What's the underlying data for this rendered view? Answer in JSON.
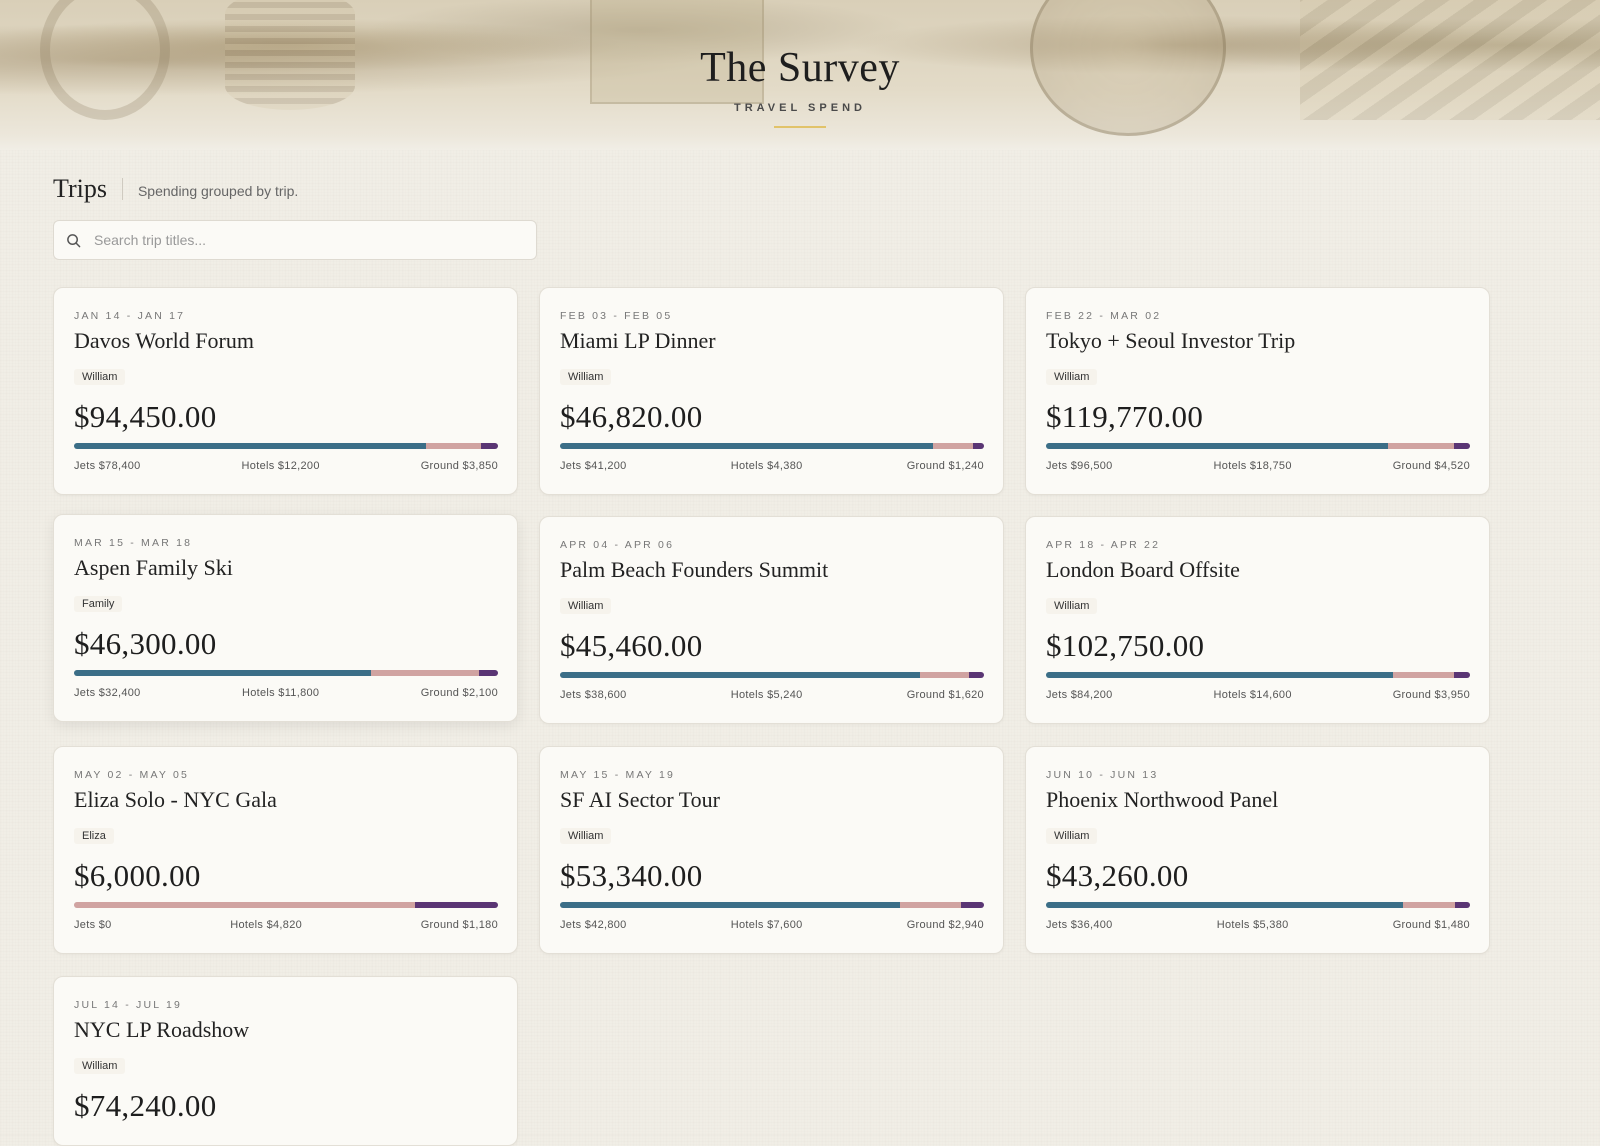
{
  "header": {
    "title": "The Survey",
    "subtitle": "TRAVEL SPEND"
  },
  "section": {
    "title": "Trips",
    "description": "Spending grouped by trip."
  },
  "search": {
    "placeholder": "Search trip titles..."
  },
  "colors": {
    "jets": "#3b6e87",
    "hotels": "#d0a3a1",
    "ground": "#5a3574",
    "accent": "#e1c36a"
  },
  "trips": [
    {
      "dates": "JAN 14 - JAN 17",
      "title": "Davos World Forum",
      "person": "William",
      "total": "$94,450.00",
      "jets_label": "Jets $78,400",
      "hotels_label": "Hotels $12,200",
      "ground_label": "Ground $3,850",
      "jets": 78400,
      "hotels": 12200,
      "ground": 3850
    },
    {
      "dates": "FEB 03 - FEB 05",
      "title": "Miami LP Dinner",
      "person": "William",
      "total": "$46,820.00",
      "jets_label": "Jets $41,200",
      "hotels_label": "Hotels $4,380",
      "ground_label": "Ground $1,240",
      "jets": 41200,
      "hotels": 4380,
      "ground": 1240
    },
    {
      "dates": "FEB 22 - MAR 02",
      "title": "Tokyo + Seoul Investor Trip",
      "person": "William",
      "total": "$119,770.00",
      "jets_label": "Jets $96,500",
      "hotels_label": "Hotels $18,750",
      "ground_label": "Ground $4,520",
      "jets": 96500,
      "hotels": 18750,
      "ground": 4520
    },
    {
      "dates": "MAR 15 - MAR 18",
      "title": "Aspen Family Ski",
      "person": "Family",
      "total": "$46,300.00",
      "jets_label": "Jets $32,400",
      "hotels_label": "Hotels $11,800",
      "ground_label": "Ground $2,100",
      "jets": 32400,
      "hotels": 11800,
      "ground": 2100
    },
    {
      "dates": "APR 04 - APR 06",
      "title": "Palm Beach Founders Summit",
      "person": "William",
      "total": "$45,460.00",
      "jets_label": "Jets $38,600",
      "hotels_label": "Hotels $5,240",
      "ground_label": "Ground $1,620",
      "jets": 38600,
      "hotels": 5240,
      "ground": 1620
    },
    {
      "dates": "APR 18 - APR 22",
      "title": "London Board Offsite",
      "person": "William",
      "total": "$102,750.00",
      "jets_label": "Jets $84,200",
      "hotels_label": "Hotels $14,600",
      "ground_label": "Ground $3,950",
      "jets": 84200,
      "hotels": 14600,
      "ground": 3950
    },
    {
      "dates": "MAY 02 - MAY 05",
      "title": "Eliza Solo - NYC Gala",
      "person": "Eliza",
      "total": "$6,000.00",
      "jets_label": "Jets $0",
      "hotels_label": "Hotels $4,820",
      "ground_label": "Ground $1,180",
      "jets": 0,
      "hotels": 4820,
      "ground": 1180
    },
    {
      "dates": "MAY 15 - MAY 19",
      "title": "SF AI Sector Tour",
      "person": "William",
      "total": "$53,340.00",
      "jets_label": "Jets $42,800",
      "hotels_label": "Hotels $7,600",
      "ground_label": "Ground $2,940",
      "jets": 42800,
      "hotels": 7600,
      "ground": 2940
    },
    {
      "dates": "JUN 10 - JUN 13",
      "title": "Phoenix Northwood Panel",
      "person": "William",
      "total": "$43,260.00",
      "jets_label": "Jets $36,400",
      "hotels_label": "Hotels $5,380",
      "ground_label": "Ground $1,480",
      "jets": 36400,
      "hotels": 5380,
      "ground": 1480
    },
    {
      "dates": "JUL 14 - JUL 19",
      "title": "NYC LP Roadshow",
      "person": "William",
      "total": "$74,240.00"
    }
  ]
}
